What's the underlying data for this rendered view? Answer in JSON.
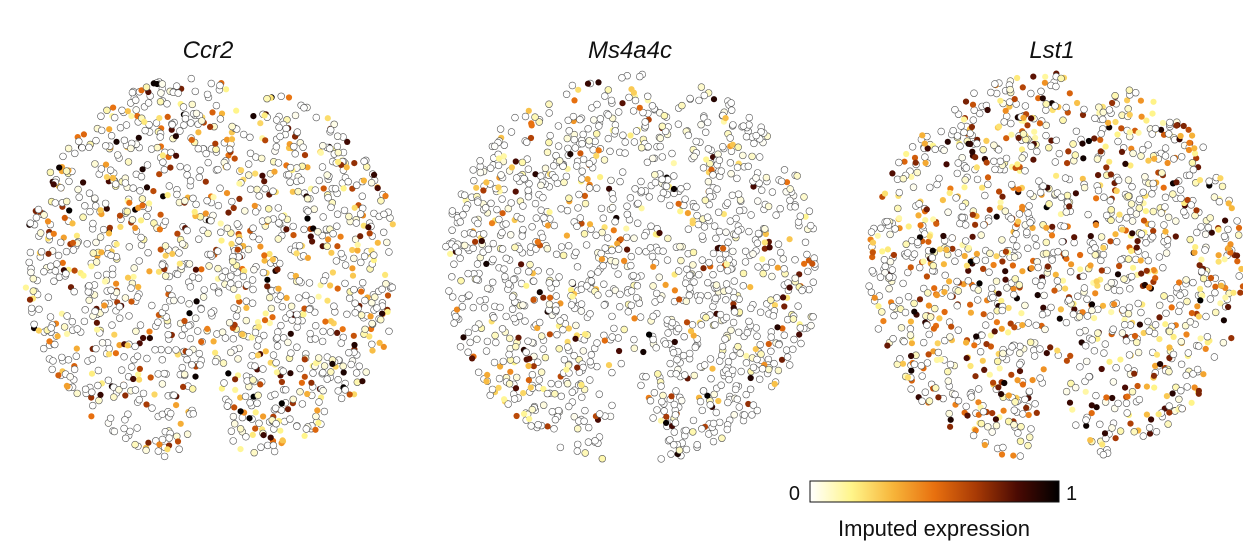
{
  "chart_data": {
    "type": "scatter",
    "description_level": "spatial scatter of spots colored by imputed expression",
    "panels": [
      {
        "title": "Ccr2",
        "n_points": 1400,
        "high_fraction": 0.34,
        "seed": 11
      },
      {
        "title": "Ms4a4c",
        "n_points": 1400,
        "high_fraction": 0.16,
        "seed": 29
      },
      {
        "title": "Lst1",
        "n_points": 1400,
        "high_fraction": 0.42,
        "seed": 47
      }
    ],
    "colorbar": {
      "label": "Imputed expression",
      "min_label": "0",
      "max_label": "1",
      "range": [
        0,
        1
      ],
      "colormap": [
        "#ffffff",
        "#fff58a",
        "#f7b53a",
        "#e8700f",
        "#a83a05",
        "#4a0a03",
        "#000000"
      ]
    },
    "grid": false,
    "legend": "bottom-right"
  }
}
